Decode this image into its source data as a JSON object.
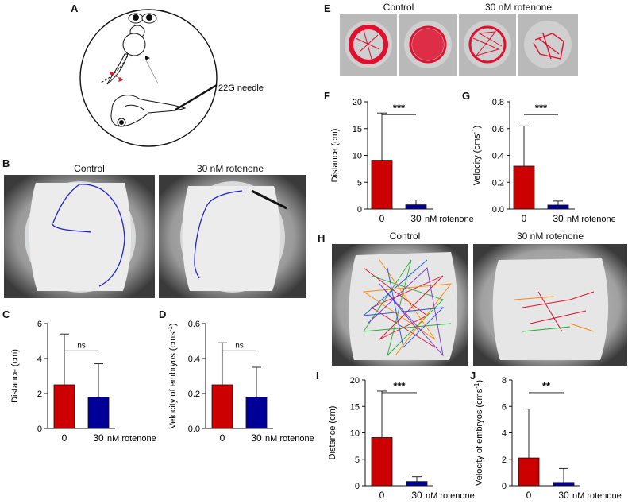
{
  "panels": {
    "A": {
      "label": "A",
      "needle_label": "22G needle"
    },
    "B": {
      "label": "B",
      "titles": [
        "Control",
        "30 nM rotenone"
      ]
    },
    "E": {
      "label": "E",
      "titles": [
        "Control",
        "30 nM rotenone"
      ]
    },
    "H": {
      "label": "H",
      "titles": [
        "Control",
        "30 nM rotenone"
      ]
    }
  },
  "colors": {
    "bar_control": "#cc0000",
    "bar_rotenone": "#000099",
    "track_blue": "#2222cc",
    "track_red": "#e0102f"
  },
  "chart_data": [
    {
      "id": "C",
      "label": "C",
      "type": "bar",
      "categories": [
        "0",
        "30"
      ],
      "category_suffix": "nM rotenone",
      "values": [
        2.5,
        1.8
      ],
      "errors": [
        2.9,
        1.9
      ],
      "ylabel": "Distance (cm)",
      "ylim": [
        0,
        6
      ],
      "yticks": [
        "0",
        "2",
        "4",
        "6"
      ],
      "significance": "ns"
    },
    {
      "id": "D",
      "label": "D",
      "type": "bar",
      "categories": [
        "0",
        "30"
      ],
      "category_suffix": "nM rotenone",
      "values": [
        0.25,
        0.18
      ],
      "errors": [
        0.24,
        0.17
      ],
      "ylabel": "Velocity of embryos (cms",
      "ylabel_sup": "-1",
      "ylabel_tail": ")",
      "ylim": [
        0,
        0.6
      ],
      "yticks": [
        "0.0",
        "0.2",
        "0.4",
        "0.6"
      ],
      "significance": "ns"
    },
    {
      "id": "F",
      "label": "F",
      "type": "bar",
      "categories": [
        "0",
        "30"
      ],
      "category_suffix": "nM rotenone",
      "values": [
        9.1,
        0.8
      ],
      "errors": [
        8.8,
        0.9
      ],
      "ylabel": "Distance (cm)",
      "ylim": [
        0,
        20
      ],
      "yticks": [
        "0",
        "5",
        "10",
        "15",
        "20"
      ],
      "significance": "***"
    },
    {
      "id": "G",
      "label": "G",
      "type": "bar",
      "categories": [
        "0",
        "30"
      ],
      "category_suffix": "nM rotenone",
      "values": [
        0.32,
        0.03
      ],
      "errors": [
        0.3,
        0.03
      ],
      "ylabel": "Velocity (cms",
      "ylabel_sup": "-1",
      "ylabel_tail": ")",
      "ylim": [
        0,
        0.8
      ],
      "yticks": [
        "0.0",
        "0.2",
        "0.4",
        "0.6",
        "0.8"
      ],
      "significance": "***"
    },
    {
      "id": "I",
      "label": "I",
      "type": "bar",
      "categories": [
        "0",
        "30"
      ],
      "category_suffix": "nM rotenone",
      "values": [
        9.1,
        0.8
      ],
      "errors": [
        8.8,
        0.9
      ],
      "ylabel": "Distance (cm)",
      "ylim": [
        0,
        20
      ],
      "yticks": [
        "0",
        "5",
        "10",
        "15",
        "20"
      ],
      "significance": "***"
    },
    {
      "id": "J",
      "label": "J",
      "type": "bar",
      "categories": [
        "0",
        "30"
      ],
      "category_suffix": "nM rotenone",
      "values": [
        2.1,
        0.25
      ],
      "errors": [
        3.7,
        1.05
      ],
      "ylabel": "Velocity of embryos (cms",
      "ylabel_sup": "-1",
      "ylabel_tail": ")",
      "ylim": [
        0,
        8
      ],
      "yticks": [
        "0",
        "2",
        "4",
        "6",
        "8"
      ],
      "significance": "**"
    }
  ]
}
